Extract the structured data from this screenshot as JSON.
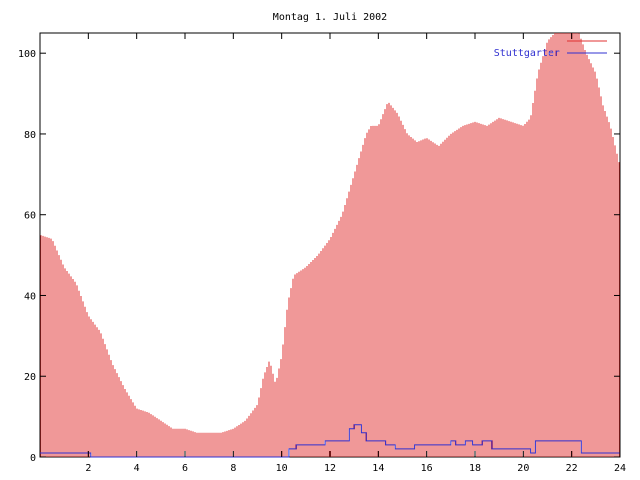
{
  "chart_data": {
    "type": "bar",
    "title": "Montag 1. Juli 2002",
    "xlabel": "",
    "ylabel": "",
    "xlim": [
      0,
      24
    ],
    "ylim": [
      0,
      105
    ],
    "x_ticks": [
      2,
      4,
      6,
      8,
      10,
      12,
      14,
      16,
      18,
      20,
      22,
      24
    ],
    "y_ticks": [
      0,
      20,
      40,
      60,
      80,
      100
    ],
    "grid": false,
    "legend_position": "top-right",
    "series": [
      {
        "name": "",
        "style": "impulses",
        "color": "#e03030",
        "x": [
          0,
          0.5,
          1,
          1.5,
          2,
          2.5,
          3,
          3.5,
          4,
          4.5,
          5,
          5.5,
          6,
          6.5,
          7,
          7.5,
          8,
          8.5,
          9,
          9.25,
          9.5,
          9.75,
          10,
          10.25,
          10.5,
          11,
          11.5,
          12,
          12.5,
          13,
          13.5,
          13.7,
          14,
          14.4,
          14.8,
          15.2,
          15.6,
          16,
          16.5,
          17,
          17.5,
          18,
          18.5,
          19,
          19.5,
          20,
          20.3,
          20.6,
          21,
          21.3,
          21.6,
          22,
          22.3,
          22.6,
          23,
          23.3,
          23.6,
          24
        ],
        "values": [
          55,
          54,
          47,
          43,
          35,
          31,
          23,
          17,
          12,
          11,
          9,
          7,
          7,
          6,
          6,
          6,
          7,
          9,
          13,
          20,
          24,
          18,
          25,
          38,
          45,
          47,
          50,
          54,
          60,
          70,
          80,
          82,
          82,
          88,
          85,
          80,
          78,
          79,
          77,
          80,
          82,
          83,
          82,
          84,
          83,
          82,
          84,
          95,
          103,
          105,
          105,
          105,
          105,
          100,
          95,
          87,
          82,
          72
        ]
      },
      {
        "name": "Stuttgarter",
        "style": "steps",
        "color": "#3030d0",
        "x": [
          0,
          2.1,
          10.3,
          10.6,
          11.8,
          12.8,
          13.0,
          13.3,
          13.5,
          14.3,
          14.7,
          15.5,
          17.0,
          17.2,
          17.6,
          17.9,
          18.3,
          18.7,
          20.3,
          20.5,
          22.4,
          24
        ],
        "values": [
          1,
          0,
          2,
          3,
          4,
          7,
          8,
          6,
          4,
          3,
          2,
          3,
          4,
          3,
          4,
          3,
          4,
          2,
          1,
          4,
          1,
          1
        ]
      }
    ]
  }
}
